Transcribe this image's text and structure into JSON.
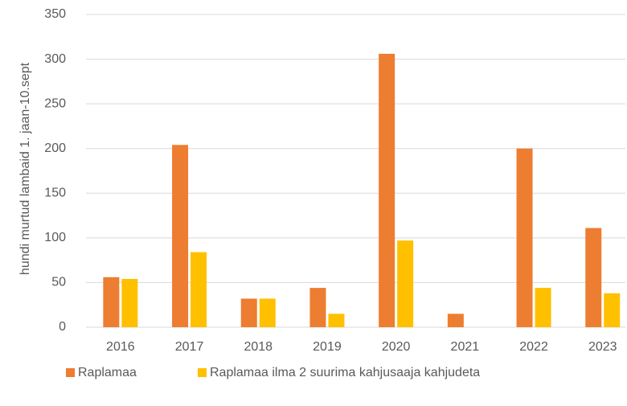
{
  "chart_data": {
    "type": "bar",
    "y_label": "hundi murtud lambaid 1. jaan-10.sept",
    "categories": [
      "2016",
      "2017",
      "2018",
      "2019",
      "2020",
      "2021",
      "2022",
      "2023"
    ],
    "series": [
      {
        "name": "Raplamaa",
        "color": "#ed7d31",
        "values": [
          56,
          204,
          32,
          44,
          306,
          15,
          200,
          111
        ]
      },
      {
        "name": "Raplamaa ilma 2 suurima kahjusaaja kahjudeta",
        "color": "#ffc000",
        "values": [
          54,
          84,
          32,
          15,
          97,
          0,
          44,
          38
        ]
      }
    ],
    "ylim": [
      0,
      350
    ],
    "yticks": [
      0,
      50,
      100,
      150,
      200,
      250,
      300,
      350
    ],
    "grid": true,
    "legend": "bottom"
  }
}
